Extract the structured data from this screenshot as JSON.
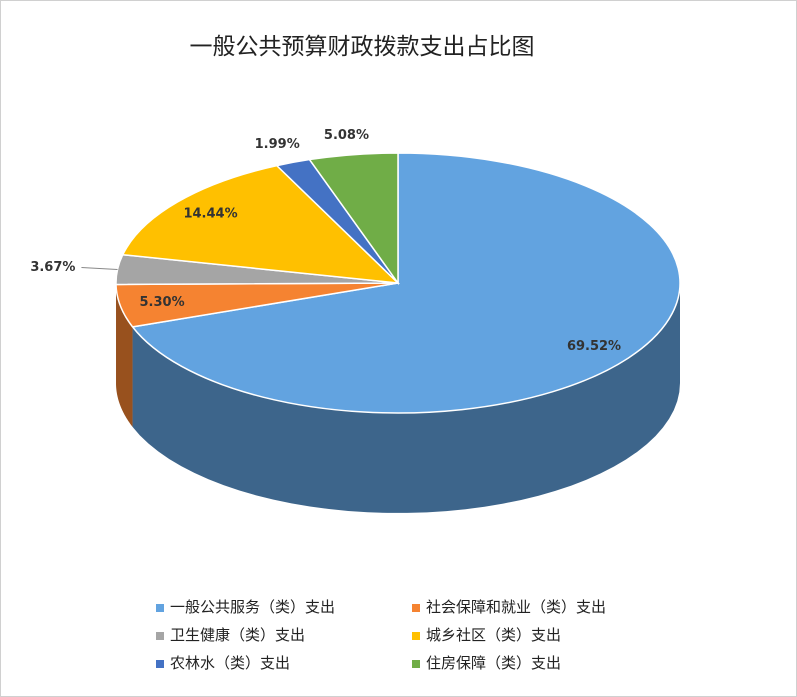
{
  "chart_data": {
    "type": "pie3d",
    "title": "一般公共预算财政拨款支出占比图",
    "categories": [
      "一般公共服务（类）支出",
      "社会保障和就业（类）支出",
      "卫生健康（类）支出",
      "城乡社区（类）支出",
      "农林水（类）支出",
      "住房保障（类）支出"
    ],
    "values": [
      69.52,
      5.3,
      3.67,
      14.44,
      1.99,
      5.08
    ],
    "value_labels": [
      "69.52%",
      "5.30%",
      "3.67%",
      "14.44%",
      "1.99%",
      "5.08%"
    ],
    "colors": [
      "#62a3e0",
      "#f58331",
      "#a5a5a5",
      "#ffc000",
      "#4472c4",
      "#70ad47"
    ],
    "legend": "bottom"
  }
}
